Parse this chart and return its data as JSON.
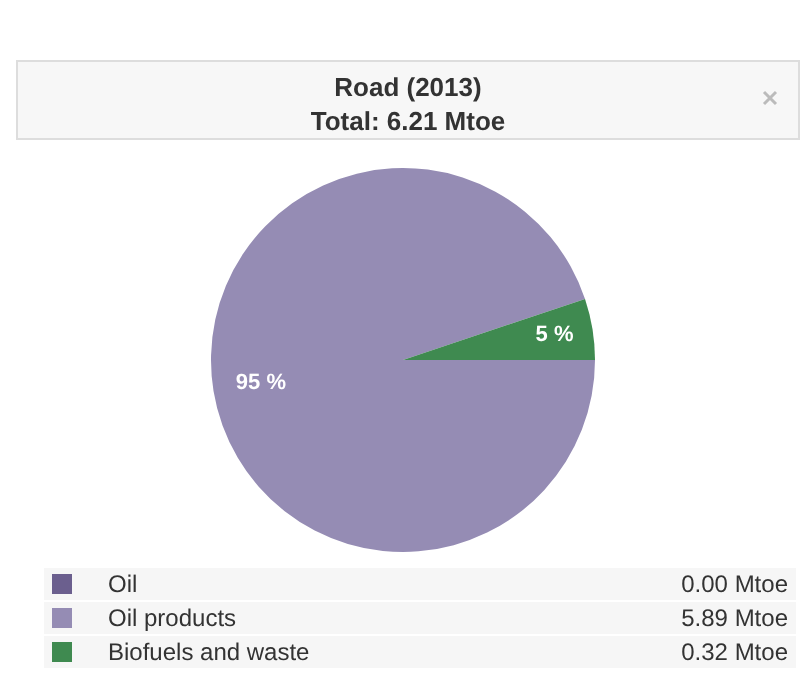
{
  "chart_data": {
    "type": "pie",
    "title": "Road (2013)",
    "subtitle": "Total: 6.21 Mtoe",
    "categories": [
      "Oil",
      "Oil products",
      "Biofuels and waste"
    ],
    "values": [
      0.0,
      5.89,
      0.32
    ],
    "colors": [
      "#6b5f8e",
      "#958cb4",
      "#3f8a50"
    ],
    "value_labels": [
      "0.00 Mtoe",
      "5.89 Mtoe",
      "0.32 Mtoe"
    ],
    "annotations": [
      "95 %",
      "5 %"
    ],
    "legend": "bottom"
  }
}
